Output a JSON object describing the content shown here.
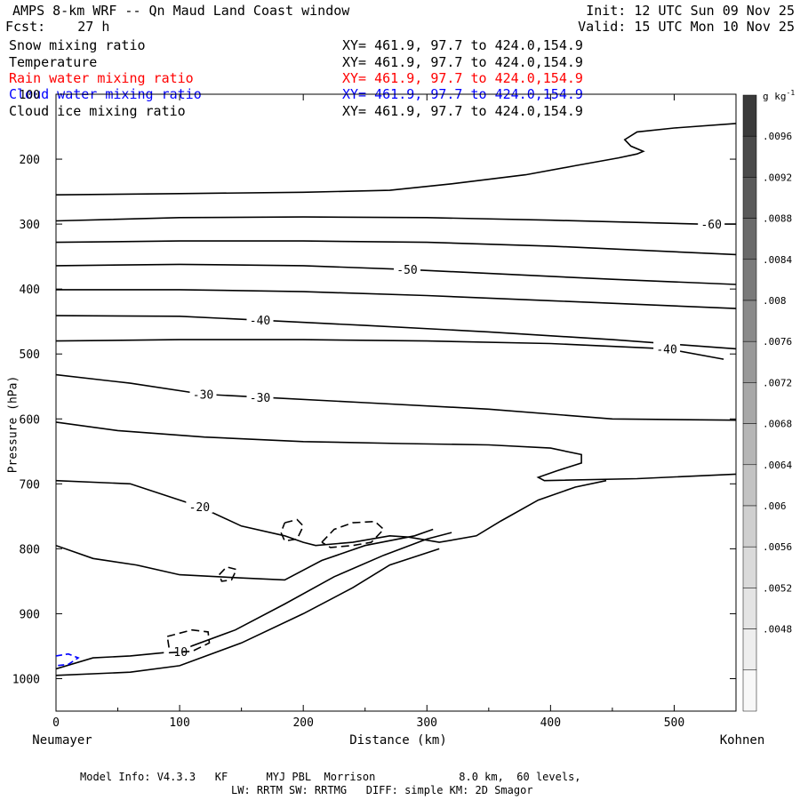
{
  "header": {
    "title": "AMPS 8-km WRF -- Qn Maud Land Coast window",
    "fcst_label": "Fcst:",
    "fcst_value": "27 h",
    "init": "Init: 12 UTC Sun 09 Nov 25",
    "valid": "Valid: 15 UTC Mon 10 Nov 25"
  },
  "variables": [
    {
      "name": "Snow mixing ratio",
      "xy": "XY= 461.9, 97.7 to 424.0,154.9",
      "color": "#000000"
    },
    {
      "name": "Temperature",
      "xy": "XY= 461.9, 97.7 to 424.0,154.9",
      "color": "#000000"
    },
    {
      "name": "Rain water mixing ratio",
      "xy": "XY= 461.9, 97.7 to 424.0,154.9",
      "color": "#ff0000"
    },
    {
      "name": "Cloud water mixing ratio",
      "xy": "XY= 461.9, 97.7 to 424.0,154.9",
      "color": "#0000ff"
    },
    {
      "name": "Cloud ice mixing ratio",
      "xy": "XY= 461.9, 97.7 to 424.0,154.9",
      "color": "#000000"
    }
  ],
  "footer": {
    "model_info": "Model Info: V4.3.3   KF      MYJ PBL  Morrison             8.0 km,  60 levels,",
    "physics": "LW: RRTM SW: RRTMG   DIFF: simple KM: 2D Smagor"
  },
  "chart_data": {
    "type": "contour",
    "xlabel": "Distance (km)",
    "ylabel": "Pressure (hPa)",
    "x_left_label": "Neumayer",
    "x_right_label": "Kohnen",
    "xlim": [
      0,
      550
    ],
    "ylim": [
      1050,
      100
    ],
    "x_ticks": [
      0,
      100,
      200,
      300,
      400,
      500
    ],
    "y_ticks": [
      100,
      200,
      300,
      400,
      500,
      600,
      700,
      800,
      900,
      1000
    ],
    "colorbar": {
      "unit": "g kg",
      "unit_exponent": "-1",
      "ticks": [
        ".0096",
        ".0092",
        ".0088",
        ".0084",
        ".008",
        ".0076",
        ".0072",
        ".0068",
        ".0064",
        ".006",
        ".0056",
        ".0052",
        ".0048"
      ],
      "colors": [
        "#3a3a3a",
        "#4a4a4a",
        "#5a5a5a",
        "#6a6a6a",
        "#7a7a7a",
        "#8a8a8a",
        "#999999",
        "#a8a8a8",
        "#b6b6b6",
        "#c3c3c3",
        "#cfcfcf",
        "#dadada",
        "#e4e4e4",
        "#eeeeee",
        "#f8f8f8"
      ]
    },
    "temperature_contours": [
      {
        "label": "",
        "points": [
          [
            0,
            255
          ],
          [
            100,
            253
          ],
          [
            200,
            251
          ],
          [
            270,
            248
          ],
          [
            320,
            238
          ],
          [
            380,
            224
          ],
          [
            420,
            210
          ],
          [
            455,
            198
          ],
          [
            470,
            192
          ],
          [
            475,
            188
          ],
          [
            465,
            180
          ],
          [
            460,
            170
          ],
          [
            470,
            158
          ],
          [
            500,
            152
          ],
          [
            550,
            145
          ]
        ]
      },
      {
        "label": "-60",
        "label_at": [
          530,
          300
        ],
        "points": [
          [
            0,
            295
          ],
          [
            100,
            290
          ],
          [
            200,
            289
          ],
          [
            300,
            290
          ],
          [
            400,
            294
          ],
          [
            520,
            300
          ],
          [
            550,
            300
          ]
        ]
      },
      {
        "label": "",
        "points": [
          [
            0,
            328
          ],
          [
            100,
            326
          ],
          [
            200,
            326
          ],
          [
            300,
            328
          ],
          [
            400,
            334
          ],
          [
            550,
            347
          ]
        ]
      },
      {
        "label": "-50",
        "label_at": [
          284,
          370
        ],
        "points": [
          [
            0,
            364
          ],
          [
            100,
            362
          ],
          [
            200,
            364
          ],
          [
            284,
            370
          ],
          [
            350,
            376
          ],
          [
            450,
            385
          ],
          [
            550,
            393
          ]
        ]
      },
      {
        "label": "",
        "points": [
          [
            0,
            401
          ],
          [
            100,
            401
          ],
          [
            200,
            404
          ],
          [
            300,
            410
          ],
          [
            400,
            418
          ],
          [
            550,
            430
          ]
        ]
      },
      {
        "label": "-40",
        "label_at": [
          165,
          448
        ],
        "points": [
          [
            0,
            441
          ],
          [
            100,
            442
          ],
          [
            165,
            448
          ],
          [
            250,
            456
          ],
          [
            350,
            466
          ],
          [
            450,
            478
          ],
          [
            550,
            492
          ]
        ]
      },
      {
        "label": "-40",
        "label_at": [
          494,
          492
        ],
        "points": [
          [
            0,
            480
          ],
          [
            100,
            478
          ],
          [
            200,
            478
          ],
          [
            300,
            480
          ],
          [
            400,
            484
          ],
          [
            494,
            492
          ],
          [
            540,
            508
          ]
        ]
      },
      {
        "label": "-30",
        "label_at": [
          119,
          562
        ],
        "points": [
          [
            0,
            532
          ],
          [
            60,
            545
          ],
          [
            119,
            562
          ],
          [
            170,
            567
          ],
          [
            250,
            575
          ],
          [
            350,
            585
          ],
          [
            450,
            600
          ],
          [
            550,
            602
          ]
        ]
      },
      {
        "label": "-30",
        "label_at": [
          165,
          567
        ],
        "points": []
      },
      {
        "label": "",
        "points": [
          [
            0,
            605
          ],
          [
            50,
            618
          ],
          [
            120,
            628
          ],
          [
            200,
            635
          ],
          [
            280,
            638
          ],
          [
            350,
            640
          ],
          [
            400,
            645
          ],
          [
            425,
            655
          ],
          [
            425,
            668
          ],
          [
            405,
            680
          ],
          [
            390,
            690
          ],
          [
            395,
            695
          ],
          [
            470,
            692
          ],
          [
            550,
            685
          ]
        ]
      },
      {
        "label": "-20",
        "label_at": [
          116,
          735
        ],
        "points": [
          [
            0,
            695
          ],
          [
            60,
            700
          ],
          [
            116,
            735
          ],
          [
            150,
            765
          ],
          [
            185,
            780
          ],
          [
            200,
            790
          ],
          [
            210,
            795
          ],
          [
            240,
            790
          ],
          [
            270,
            780
          ],
          [
            285,
            782
          ],
          [
            310,
            790
          ],
          [
            340,
            780
          ],
          [
            360,
            757
          ],
          [
            390,
            725
          ],
          [
            420,
            705
          ],
          [
            445,
            695
          ]
        ]
      },
      {
        "label": "",
        "points": [
          [
            0,
            795
          ],
          [
            30,
            815
          ],
          [
            65,
            825
          ],
          [
            100,
            840
          ],
          [
            150,
            845
          ],
          [
            185,
            848
          ],
          [
            215,
            818
          ],
          [
            250,
            795
          ],
          [
            290,
            780
          ],
          [
            305,
            770
          ]
        ]
      },
      {
        "label": "-10",
        "label_at": [
          98,
          958
        ],
        "points": [
          [
            0,
            985
          ],
          [
            30,
            968
          ],
          [
            60,
            965
          ],
          [
            98,
            958
          ],
          [
            145,
            925
          ],
          [
            185,
            885
          ],
          [
            225,
            843
          ],
          [
            265,
            810
          ],
          [
            300,
            785
          ],
          [
            320,
            775
          ]
        ]
      },
      {
        "label": "",
        "points": [
          [
            0,
            995
          ],
          [
            60,
            990
          ],
          [
            100,
            980
          ],
          [
            150,
            945
          ],
          [
            200,
            900
          ],
          [
            240,
            860
          ],
          [
            270,
            825
          ],
          [
            310,
            800
          ]
        ]
      }
    ],
    "snow_contours_dashed": [
      {
        "points": [
          [
            185,
            760
          ],
          [
            195,
            755
          ],
          [
            200,
            765
          ],
          [
            195,
            785
          ],
          [
            185,
            788
          ],
          [
            182,
            775
          ],
          [
            185,
            760
          ]
        ]
      },
      {
        "points": [
          [
            215,
            790
          ],
          [
            225,
            770
          ],
          [
            240,
            760
          ],
          [
            258,
            758
          ],
          [
            265,
            770
          ],
          [
            255,
            790
          ],
          [
            240,
            795
          ],
          [
            222,
            798
          ],
          [
            215,
            790
          ]
        ]
      },
      {
        "points": [
          [
            132,
            840
          ],
          [
            138,
            828
          ],
          [
            146,
            832
          ],
          [
            142,
            848
          ],
          [
            134,
            850
          ],
          [
            132,
            840
          ]
        ]
      },
      {
        "points": [
          [
            90,
            935
          ],
          [
            110,
            925
          ],
          [
            123,
            928
          ],
          [
            124,
            945
          ],
          [
            110,
            958
          ],
          [
            92,
            960
          ],
          [
            90,
            935
          ]
        ]
      }
    ],
    "cloud_water_contours": [
      {
        "color": "#0000ff",
        "points": [
          [
            0,
            965
          ],
          [
            10,
            962
          ],
          [
            18,
            968
          ],
          [
            10,
            978
          ],
          [
            0,
            980
          ]
        ]
      }
    ]
  }
}
